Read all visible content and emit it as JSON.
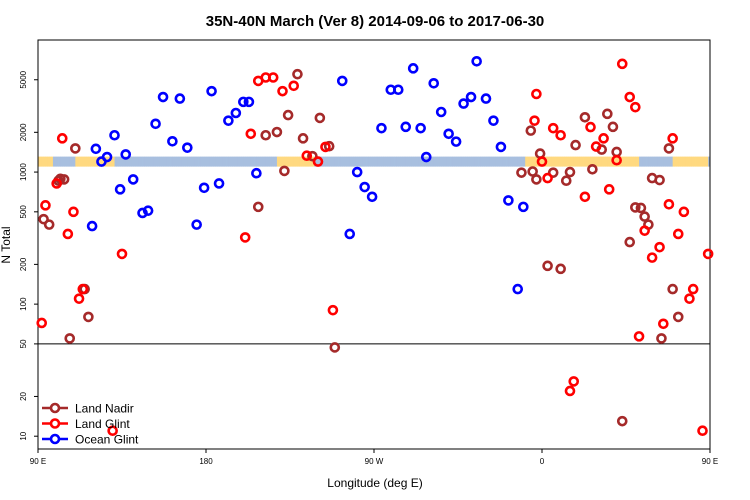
{
  "chart_data": {
    "type": "scatter",
    "title": "35N-40N March (Ver 8)   2014-09-06 to 2017-06-30",
    "xlabel": "Longitude (deg E)",
    "ylabel": "N Total",
    "x_unit": "deg_E",
    "xlim": [
      90,
      450
    ],
    "ylim": [
      8,
      10000
    ],
    "y_scale": "log",
    "x_ticks": [
      {
        "value": 90,
        "label": "90 E"
      },
      {
        "value": 180,
        "label": "180"
      },
      {
        "value": 270,
        "label": "90 W"
      },
      {
        "value": 360,
        "label": "0"
      },
      {
        "value": 450,
        "label": "90 E"
      },
      {
        "value": 540,
        "label": "180"
      }
    ],
    "y_ticks": [
      {
        "value": 10,
        "label": "10"
      },
      {
        "value": 20,
        "label": "20"
      },
      {
        "value": 50,
        "label": "50"
      },
      {
        "value": 100,
        "label": "100"
      },
      {
        "value": 200,
        "label": "200"
      },
      {
        "value": 500,
        "label": "500"
      },
      {
        "value": 1000,
        "label": "1000"
      },
      {
        "value": 2000,
        "label": "2000"
      },
      {
        "value": 5000,
        "label": "5000"
      }
    ],
    "separator_y": 50,
    "land_band": {
      "y": 1200,
      "land_color": "#ffd980",
      "ocean_color": "#a8bfdf"
    },
    "legend": {
      "position": "bottom-left"
    },
    "series": [
      {
        "name": "Land Nadir",
        "color": "#a52a2a",
        "points": [
          [
            93,
            440
          ],
          [
            96,
            400
          ],
          [
            101,
            860
          ],
          [
            102,
            890
          ],
          [
            104,
            880
          ],
          [
            107,
            55
          ],
          [
            110,
            1510
          ],
          [
            115,
            130
          ],
          [
            117,
            80
          ],
          [
            208,
            545
          ],
          [
            212,
            1900
          ],
          [
            218,
            2010
          ],
          [
            222,
            1020
          ],
          [
            224,
            2700
          ],
          [
            229,
            5510
          ],
          [
            232,
            1800
          ],
          [
            237,
            1320
          ],
          [
            241,
            2570
          ],
          [
            246,
            1570
          ],
          [
            249,
            47
          ],
          [
            349,
            990
          ],
          [
            354,
            2060
          ],
          [
            355,
            1010
          ],
          [
            357,
            880
          ],
          [
            359,
            1380
          ],
          [
            363,
            195
          ],
          [
            366,
            990
          ],
          [
            370,
            185
          ],
          [
            373,
            860
          ],
          [
            375,
            1000
          ],
          [
            378,
            1600
          ],
          [
            383,
            2600
          ],
          [
            387,
            1050
          ],
          [
            392,
            1480
          ],
          [
            395,
            2760
          ],
          [
            398,
            2200
          ],
          [
            400,
            1420
          ],
          [
            403,
            13
          ],
          [
            407,
            295
          ],
          [
            410,
            540
          ],
          [
            413,
            535
          ],
          [
            415,
            460
          ],
          [
            417,
            400
          ],
          [
            419,
            900
          ],
          [
            423,
            870
          ],
          [
            424,
            55
          ],
          [
            428,
            1510
          ],
          [
            430,
            130
          ],
          [
            433,
            80
          ]
        ]
      },
      {
        "name": "Land Glint",
        "color": "#ff0000",
        "points": [
          [
            92,
            72
          ],
          [
            94,
            560
          ],
          [
            100,
            820
          ],
          [
            103,
            1800
          ],
          [
            106,
            340
          ],
          [
            109,
            500
          ],
          [
            112,
            110
          ],
          [
            114,
            130
          ],
          [
            130,
            11
          ],
          [
            135,
            240
          ],
          [
            201,
            320
          ],
          [
            204,
            1950
          ],
          [
            208,
            4900
          ],
          [
            212,
            5200
          ],
          [
            216,
            5200
          ],
          [
            221,
            4100
          ],
          [
            227,
            4500
          ],
          [
            234,
            1330
          ],
          [
            240,
            1200
          ],
          [
            244,
            1550
          ],
          [
            248,
            90
          ],
          [
            356,
            2450
          ],
          [
            357,
            3900
          ],
          [
            360,
            1200
          ],
          [
            363,
            900
          ],
          [
            366,
            2150
          ],
          [
            370,
            1900
          ],
          [
            375,
            22
          ],
          [
            377,
            26
          ],
          [
            383,
            650
          ],
          [
            386,
            2190
          ],
          [
            389,
            1560
          ],
          [
            393,
            1800
          ],
          [
            396,
            740
          ],
          [
            400,
            1230
          ],
          [
            403,
            6600
          ],
          [
            407,
            3700
          ],
          [
            410,
            3100
          ],
          [
            412,
            57
          ],
          [
            415,
            360
          ],
          [
            419,
            225
          ],
          [
            423,
            270
          ],
          [
            425,
            71
          ],
          [
            428,
            570
          ],
          [
            430,
            1800
          ],
          [
            433,
            340
          ],
          [
            436,
            500
          ],
          [
            439,
            110
          ],
          [
            441,
            130
          ],
          [
            446,
            11
          ],
          [
            449,
            240
          ]
        ]
      },
      {
        "name": "Ocean Glint",
        "color": "#0000ff",
        "points": [
          [
            119,
            390
          ],
          [
            121,
            1500
          ],
          [
            124,
            1200
          ],
          [
            127,
            1300
          ],
          [
            131,
            1900
          ],
          [
            134,
            740
          ],
          [
            137,
            1360
          ],
          [
            141,
            880
          ],
          [
            146,
            490
          ],
          [
            149,
            510
          ],
          [
            153,
            2320
          ],
          [
            157,
            3700
          ],
          [
            162,
            1710
          ],
          [
            166,
            3600
          ],
          [
            170,
            1530
          ],
          [
            175,
            400
          ],
          [
            179,
            760
          ],
          [
            183,
            4100
          ],
          [
            187,
            820
          ],
          [
            192,
            2450
          ],
          [
            196,
            2800
          ],
          [
            200,
            3400
          ],
          [
            203,
            3400
          ],
          [
            207,
            980
          ],
          [
            253,
            4900
          ],
          [
            257,
            340
          ],
          [
            261,
            1000
          ],
          [
            265,
            770
          ],
          [
            269,
            650
          ],
          [
            274,
            2150
          ],
          [
            279,
            4200
          ],
          [
            283,
            4200
          ],
          [
            287,
            2200
          ],
          [
            291,
            6100
          ],
          [
            295,
            2150
          ],
          [
            298,
            1300
          ],
          [
            302,
            4700
          ],
          [
            306,
            2850
          ],
          [
            310,
            1950
          ],
          [
            314,
            1700
          ],
          [
            318,
            3300
          ],
          [
            322,
            3700
          ],
          [
            325,
            6900
          ],
          [
            330,
            3600
          ],
          [
            334,
            2450
          ],
          [
            338,
            1550
          ],
          [
            342,
            610
          ],
          [
            347,
            130
          ],
          [
            350,
            545
          ]
        ]
      }
    ]
  }
}
